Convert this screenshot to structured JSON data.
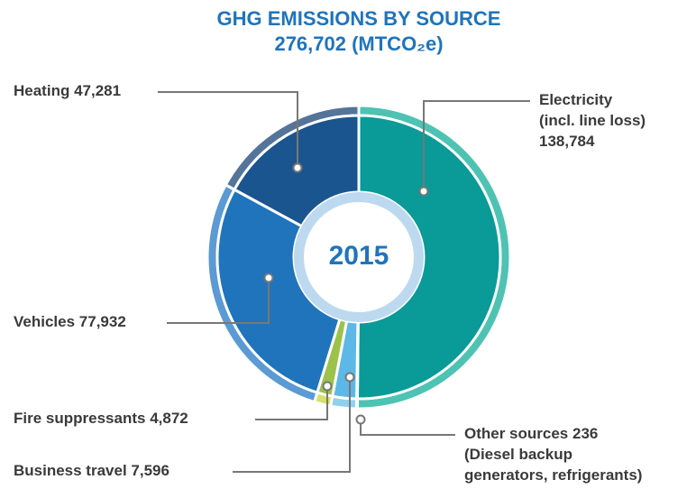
{
  "chart_data": {
    "type": "donut",
    "title": "GHG EMISSIONS BY SOURCE",
    "subtitle": "276,702 (MTCO₂e)",
    "center_label": "2015",
    "categories": [
      "Electricity",
      "Other sources",
      "Business travel",
      "Fire suppressants",
      "Vehicles",
      "Heating"
    ],
    "notes": [
      [
        "(incl. line loss)"
      ],
      [
        "(Diesel backup",
        "generators, refrigerants)"
      ],
      null,
      null,
      null,
      null
    ],
    "values": [
      138784,
      236,
      7596,
      4872,
      77932,
      47281
    ],
    "value_labels": [
      "138,784",
      "236",
      "7,596",
      "4,872",
      "77,932",
      "47,281"
    ],
    "colors": [
      "#0a9a98",
      "#5cb8e6",
      "#5cb8e6",
      "#9cc24a",
      "#1f74bc",
      "#1b5590"
    ],
    "ring_colors": [
      "#4ec3b3",
      "#8fd0f0",
      "#8fd0f0",
      "#d5e26c",
      "#5b9ad3",
      "#557499"
    ]
  }
}
